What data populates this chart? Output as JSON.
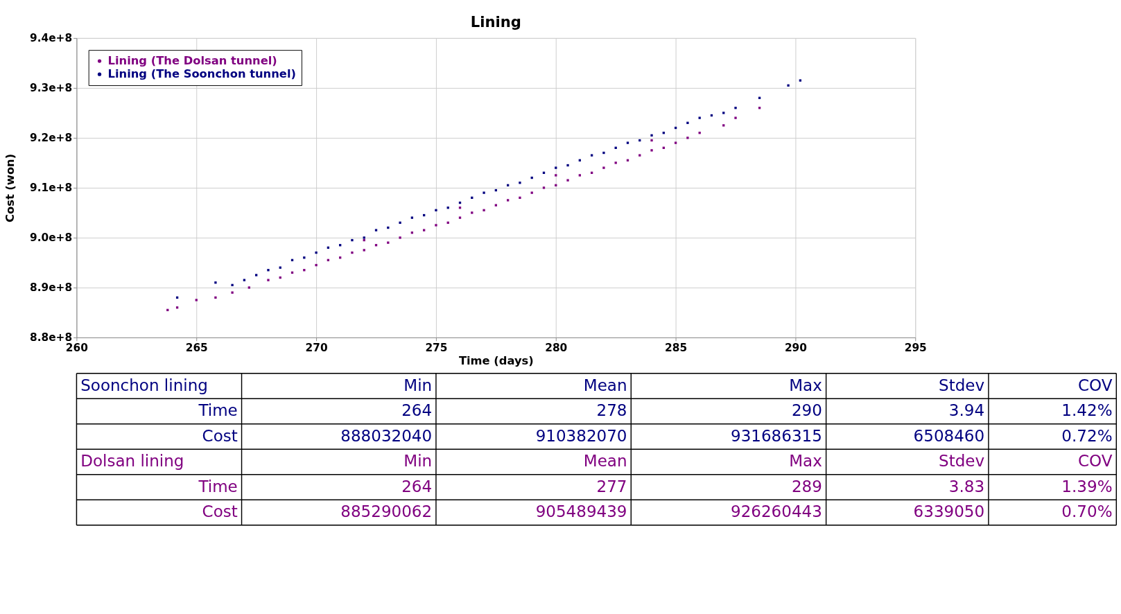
{
  "chart_data": {
    "type": "scatter",
    "title": "Lining",
    "xlabel": "Time (days)",
    "ylabel": "Cost (won)",
    "xlim": [
      260,
      295
    ],
    "xticks": [
      260,
      265,
      270,
      275,
      280,
      285,
      290,
      295
    ],
    "ylim": [
      880000000,
      940000000
    ],
    "yticks": [
      {
        "value": 880000000,
        "label": "8.8e+8"
      },
      {
        "value": 890000000,
        "label": "8.9e+8"
      },
      {
        "value": 900000000,
        "label": "9.0e+8"
      },
      {
        "value": 910000000,
        "label": "9.1e+8"
      },
      {
        "value": 920000000,
        "label": "9.2e+8"
      },
      {
        "value": 930000000,
        "label": "9.3e+8"
      },
      {
        "value": 940000000,
        "label": "9.4e+8"
      }
    ],
    "grid": true,
    "legend": "top left",
    "marker": "square",
    "series": [
      {
        "name": "Lining (The Dolsan tunnel)",
        "color": "#800080",
        "x": [
          263.8,
          264.2,
          265.0,
          265.8,
          266.5,
          267.2,
          268.0,
          268.5,
          269.0,
          269.5,
          270.0,
          270.5,
          271.0,
          271.5,
          272.0,
          272.0,
          272.5,
          273.0,
          273.5,
          274.0,
          274.5,
          275.0,
          275.5,
          276.0,
          276.0,
          276.5,
          277.0,
          277.5,
          278.0,
          278.5,
          279.0,
          279.5,
          280.0,
          280.0,
          280.5,
          281.0,
          281.5,
          282.0,
          282.5,
          283.0,
          283.5,
          284.0,
          284.0,
          284.5,
          285.0,
          285.5,
          286.0,
          287.0,
          287.5,
          288.5
        ],
        "values": [
          885500000,
          886000000,
          887500000,
          888000000,
          889000000,
          890000000,
          891500000,
          892000000,
          893000000,
          893500000,
          894500000,
          895500000,
          896000000,
          897000000,
          897500000,
          899500000,
          898500000,
          899000000,
          900000000,
          901000000,
          901500000,
          902500000,
          903000000,
          904000000,
          906000000,
          905000000,
          905500000,
          906500000,
          907500000,
          908000000,
          909000000,
          910000000,
          910500000,
          912500000,
          911500000,
          912500000,
          913000000,
          914000000,
          915000000,
          915500000,
          916500000,
          917500000,
          919500000,
          918000000,
          919000000,
          920000000,
          921000000,
          922500000,
          924000000,
          926000000
        ]
      },
      {
        "name": "Lining (The Soonchon tunnel)",
        "color": "#000080",
        "x": [
          264.2,
          265.8,
          266.5,
          267.0,
          267.5,
          268.0,
          268.5,
          269.0,
          269.5,
          270.0,
          270.5,
          271.0,
          271.5,
          272.0,
          272.5,
          273.0,
          273.5,
          274.0,
          274.5,
          275.0,
          275.5,
          276.0,
          276.5,
          277.0,
          277.5,
          278.0,
          278.5,
          279.0,
          279.5,
          280.0,
          280.5,
          281.0,
          281.5,
          282.0,
          282.5,
          283.0,
          283.5,
          284.0,
          284.5,
          285.0,
          285.5,
          286.0,
          286.5,
          287.0,
          287.5,
          288.5,
          289.7,
          290.2
        ],
        "values": [
          888000000,
          891000000,
          890500000,
          891500000,
          892500000,
          893500000,
          894000000,
          895500000,
          896000000,
          897000000,
          898000000,
          898500000,
          899500000,
          900000000,
          901500000,
          902000000,
          903000000,
          904000000,
          904500000,
          905500000,
          906000000,
          907000000,
          908000000,
          909000000,
          909500000,
          910500000,
          911000000,
          912000000,
          913000000,
          914000000,
          914500000,
          915500000,
          916500000,
          917000000,
          918000000,
          919000000,
          919500000,
          920500000,
          921000000,
          922000000,
          923000000,
          924000000,
          924500000,
          925000000,
          926000000,
          928000000,
          930500000,
          931500000
        ]
      }
    ],
    "annotations": [
      "Soonchon lining",
      "Min",
      "Mean",
      "Max",
      "Stdev",
      "COV",
      "Time",
      "264",
      "278",
      "290",
      "3.94",
      "1.42%",
      "Cost",
      "888032040",
      "910382070",
      "931686315",
      "6508460",
      "0.72%",
      "Dolsan lining",
      "Min",
      "Mean",
      "Max",
      "Stdev",
      "COV",
      "Time",
      "264",
      "277",
      "289",
      "3.83",
      "1.39%",
      "Cost",
      "885290062",
      "905489439",
      "926260443",
      "6339050",
      "0.70%"
    ]
  }
}
